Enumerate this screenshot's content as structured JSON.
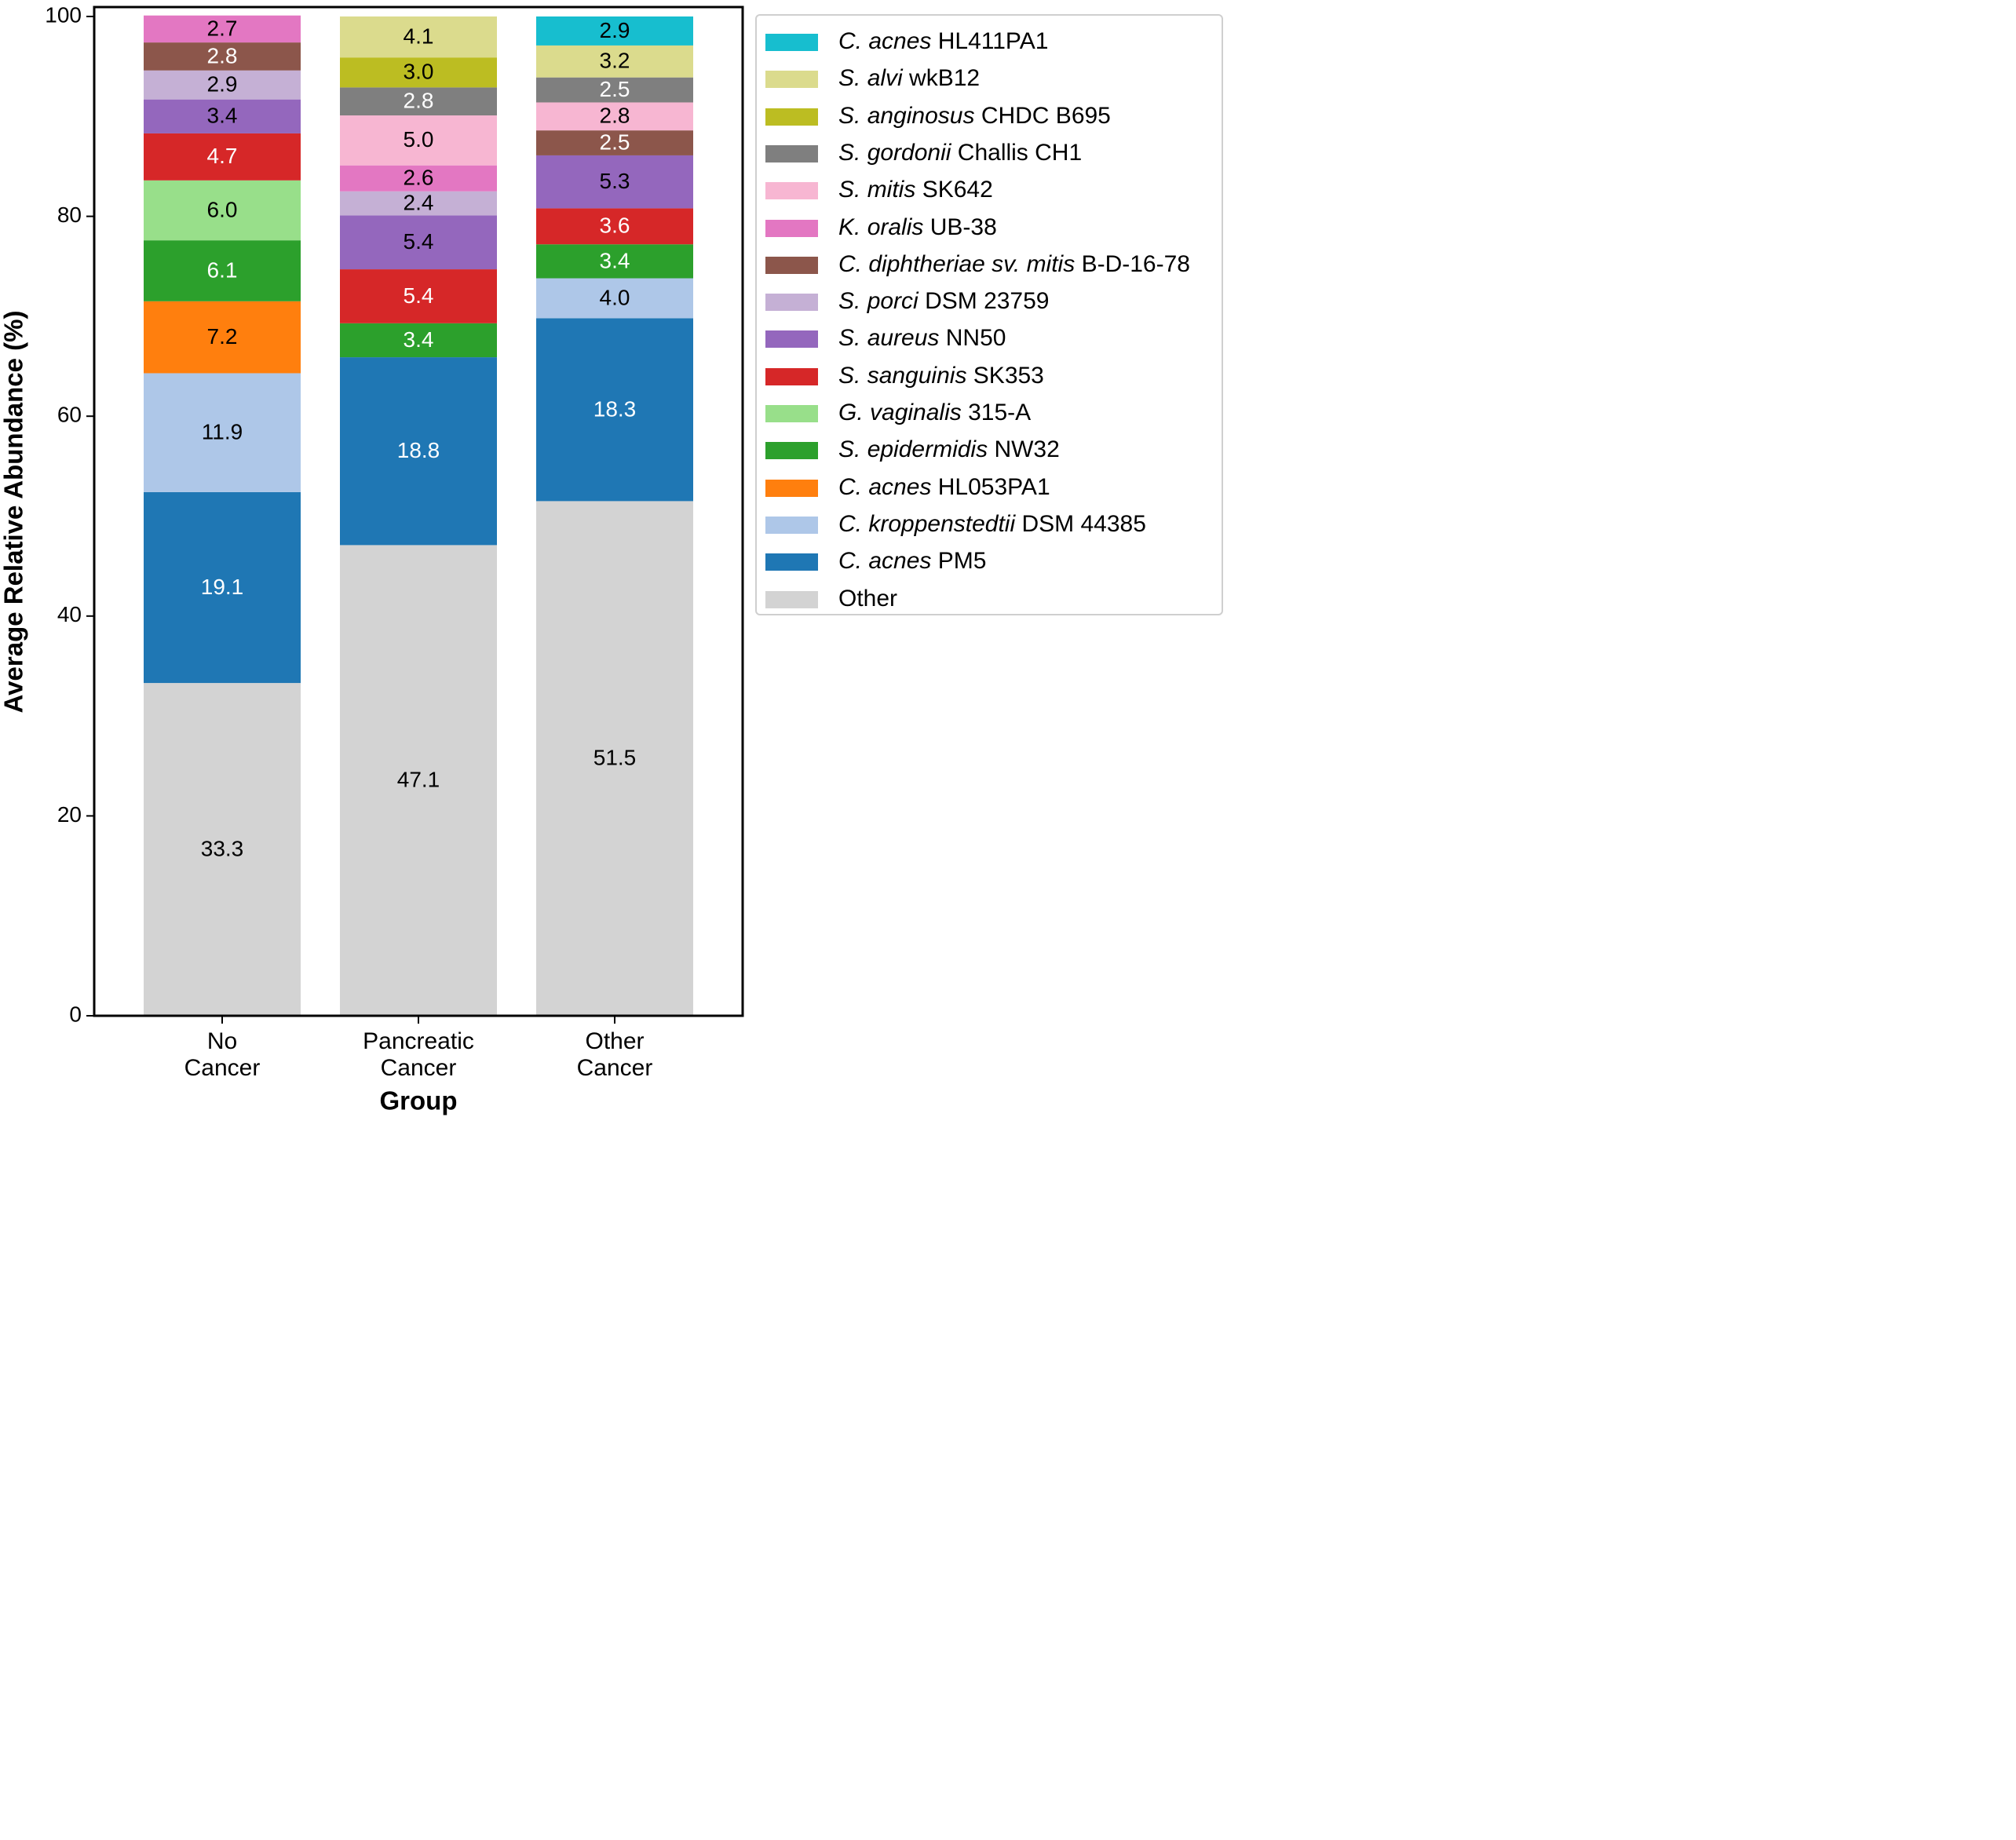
{
  "chart_data": {
    "type": "bar",
    "stacked": true,
    "xlabel": "Group",
    "ylabel": "Average Relative Abundance (%)",
    "ylim": [
      0,
      100
    ],
    "yticks": [
      0,
      20,
      40,
      60,
      80,
      100
    ],
    "ytick_labels": [
      "0",
      "20",
      "40",
      "60",
      "80",
      "100"
    ],
    "categories": [
      [
        "No",
        "Cancer"
      ],
      [
        "Pancreatic",
        "Cancer"
      ],
      [
        "Other",
        "Cancer"
      ]
    ],
    "series": [
      {
        "name": "Other",
        "color": "#d3d3d3",
        "label_color": "#000000",
        "values": [
          33.3,
          47.1,
          51.5
        ],
        "labels": [
          "33.3",
          "47.1",
          "51.5"
        ]
      },
      {
        "name": "C. acnes PM5",
        "color": "#1f77b4",
        "label_color": "#ffffff",
        "values": [
          19.1,
          18.8,
          18.3
        ],
        "labels": [
          "19.1",
          "18.8",
          "18.3"
        ]
      },
      {
        "name": "C. kroppenstedtii DSM 44385",
        "color": "#aec7e8",
        "label_color": "#000000",
        "values": [
          11.9,
          0,
          4.0
        ],
        "labels": [
          "11.9",
          "",
          "4.0"
        ]
      },
      {
        "name": "C. acnes HL053PA1",
        "color": "#ff7f0e",
        "label_color": "#000000",
        "values": [
          7.2,
          0,
          0
        ],
        "labels": [
          "7.2",
          "",
          ""
        ]
      },
      {
        "name": "S. epidermidis NW32",
        "color": "#2ca02c",
        "label_color": "#ffffff",
        "values": [
          6.1,
          3.4,
          3.4
        ],
        "labels": [
          "6.1",
          "3.4",
          "3.4"
        ]
      },
      {
        "name": "G. vaginalis 315-A",
        "color": "#98df8a",
        "label_color": "#000000",
        "values": [
          6.0,
          0,
          0
        ],
        "labels": [
          "6.0",
          "",
          ""
        ]
      },
      {
        "name": "S. sanguinis SK353",
        "color": "#d62728",
        "label_color": "#ffffff",
        "values": [
          4.7,
          5.4,
          3.6
        ],
        "labels": [
          "4.7",
          "5.4",
          "3.6"
        ]
      },
      {
        "name": "S. aureus NN50",
        "color": "#9467bd",
        "label_color": "#000000",
        "values": [
          3.4,
          5.4,
          5.3
        ],
        "labels": [
          "3.4",
          "5.4",
          "5.3"
        ]
      },
      {
        "name": "S. porci DSM 23759",
        "color": "#c5b0d5",
        "label_color": "#000000",
        "values": [
          2.9,
          2.4,
          0
        ],
        "labels": [
          "2.9",
          "2.4",
          ""
        ]
      },
      {
        "name": "C. diphtheriae sv. mitis B-D-16-78",
        "color": "#8c564b",
        "label_color": "#ffffff",
        "values": [
          2.8,
          0,
          2.5
        ],
        "labels": [
          "2.8",
          "",
          "2.5"
        ]
      },
      {
        "name": "K. oralis UB-38",
        "color": "#e377c2",
        "label_color": "#000000",
        "values": [
          2.7,
          2.6,
          0
        ],
        "labels": [
          "2.7",
          "2.6",
          ""
        ]
      },
      {
        "name": "S. mitis SK642",
        "color": "#f7b6d2",
        "label_color": "#000000",
        "values": [
          0,
          5.0,
          2.8
        ],
        "labels": [
          "",
          "5.0",
          "2.8"
        ]
      },
      {
        "name": "S. gordonii Challis CH1",
        "color": "#7f7f7f",
        "label_color": "#ffffff",
        "values": [
          0,
          2.8,
          2.5
        ],
        "labels": [
          "",
          "2.8",
          "2.5"
        ]
      },
      {
        "name": "S. anginosus CHDC B695",
        "color": "#bcbd22",
        "label_color": "#000000",
        "values": [
          0,
          3.0,
          0
        ],
        "labels": [
          "",
          "3.0",
          ""
        ]
      },
      {
        "name": "S. alvi wkB12",
        "color": "#dbdb8d",
        "label_color": "#000000",
        "values": [
          0,
          4.1,
          3.2
        ],
        "labels": [
          "",
          "4.1",
          "3.2"
        ]
      },
      {
        "name": "C. acnes HL411PA1",
        "color": "#17becf",
        "label_color": "#000000",
        "values": [
          0,
          0,
          2.9
        ],
        "labels": [
          "",
          "",
          "2.9"
        ]
      }
    ],
    "legend": {
      "placement": "outside-right",
      "items": [
        {
          "genus": "C.",
          "species": "acnes",
          "strain": "HL411PA1",
          "color": "#17becf"
        },
        {
          "genus": "S.",
          "species": "alvi",
          "strain": "wkB12",
          "color": "#dbdb8d"
        },
        {
          "genus": "S.",
          "species": "anginosus",
          "strain": "CHDC B695",
          "color": "#bcbd22"
        },
        {
          "genus": "S.",
          "species": "gordonii",
          "strain": "Challis CH1",
          "color": "#7f7f7f"
        },
        {
          "genus": "S.",
          "species": "mitis",
          "strain": "SK642",
          "color": "#f7b6d2"
        },
        {
          "genus": "K.",
          "species": "oralis",
          "strain": "UB-38",
          "color": "#e377c2"
        },
        {
          "genus": "C.",
          "species": "diphtheriae sv. mitis",
          "strain": "B-D-16-78",
          "color": "#8c564b"
        },
        {
          "genus": "S.",
          "species": "porci",
          "strain": "DSM 23759",
          "color": "#c5b0d5"
        },
        {
          "genus": "S.",
          "species": "aureus",
          "strain": "NN50",
          "color": "#9467bd"
        },
        {
          "genus": "S.",
          "species": "sanguinis",
          "strain": "SK353",
          "color": "#d62728"
        },
        {
          "genus": "G.",
          "species": "vaginalis",
          "strain": "315-A",
          "color": "#98df8a"
        },
        {
          "genus": "S.",
          "species": "epidermidis",
          "strain": "NW32",
          "color": "#2ca02c"
        },
        {
          "genus": "C.",
          "species": "acnes",
          "strain": "HL053PA1",
          "color": "#ff7f0e"
        },
        {
          "genus": "C.",
          "species": "kroppenstedtii",
          "strain": "DSM 44385",
          "color": "#aec7e8"
        },
        {
          "genus": "C.",
          "species": "acnes",
          "strain": "PM5",
          "color": "#1f77b4"
        },
        {
          "genus": "",
          "species": "",
          "strain": "Other",
          "color": "#d3d3d3"
        }
      ]
    }
  }
}
